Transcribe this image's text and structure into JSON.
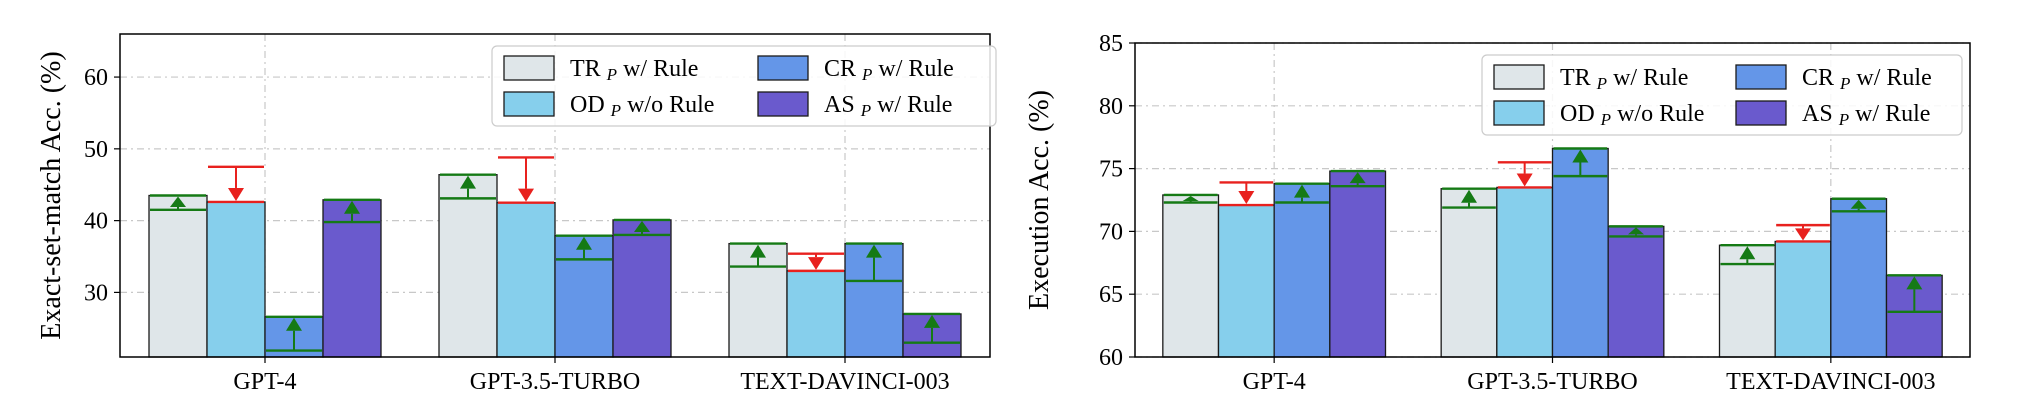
{
  "colors": {
    "tr": "#dfe6e9",
    "od": "#86cfec",
    "cr": "#6496e8",
    "as": "#6a5acd",
    "up_arrow": "#157a15",
    "down_arrow": "#e8211e",
    "grid": "#c8c8c8"
  },
  "legend_placement": "top-right",
  "chart_data": [
    {
      "type": "bar",
      "ylabel": "Exact-set-match Acc. (%)",
      "ylim": [
        21,
        66
      ],
      "yticks": [
        30,
        40,
        50,
        60
      ],
      "grid": true,
      "categories": [
        "GPT-4",
        "GPT-3.5-TURBO",
        "TEXT-DAVINCI-003"
      ],
      "series": [
        {
          "name": "TR",
          "sub": "P",
          "suffix": " w/ Rule",
          "key": "tr",
          "values": [
            43.5,
            46.4,
            36.8
          ],
          "baseline": [
            41.5,
            43.1,
            33.6
          ]
        },
        {
          "name": "OD",
          "sub": "P",
          "suffix": " w/o Rule",
          "key": "od",
          "values": [
            42.6,
            42.5,
            33.0
          ],
          "baseline": [
            47.5,
            48.8,
            35.4
          ]
        },
        {
          "name": "CR",
          "sub": "P",
          "suffix": " w/ Rule",
          "key": "cr",
          "values": [
            26.6,
            37.9,
            36.8
          ],
          "baseline": [
            21.9,
            34.6,
            31.6
          ]
        },
        {
          "name": "AS",
          "sub": "P",
          "suffix": " w/ Rule",
          "key": "as",
          "values": [
            42.9,
            40.1,
            27.0
          ],
          "baseline": [
            39.8,
            38.0,
            23.0
          ]
        }
      ]
    },
    {
      "type": "bar",
      "ylabel": "Execution Acc. (%)",
      "ylim": [
        60,
        85
      ],
      "yticks": [
        60,
        65,
        70,
        75,
        80,
        85
      ],
      "grid": true,
      "categories": [
        "GPT-4",
        "GPT-3.5-TURBO",
        "TEXT-DAVINCI-003"
      ],
      "series": [
        {
          "name": "TR",
          "sub": "P",
          "suffix": " w/ Rule",
          "key": "tr",
          "values": [
            72.9,
            73.4,
            68.9
          ],
          "baseline": [
            72.3,
            71.9,
            67.4
          ]
        },
        {
          "name": "OD",
          "sub": "P",
          "suffix": " w/o Rule",
          "key": "od",
          "values": [
            72.1,
            73.5,
            69.2
          ],
          "baseline": [
            73.9,
            75.5,
            70.5
          ]
        },
        {
          "name": "CR",
          "sub": "P",
          "suffix": " w/ Rule",
          "key": "cr",
          "values": [
            73.8,
            76.6,
            72.6
          ],
          "baseline": [
            72.3,
            74.4,
            71.6
          ]
        },
        {
          "name": "AS",
          "sub": "P",
          "suffix": " w/ Rule",
          "key": "as",
          "values": [
            74.8,
            70.4,
            66.5
          ],
          "baseline": [
            73.6,
            69.6,
            63.6
          ]
        }
      ]
    }
  ]
}
